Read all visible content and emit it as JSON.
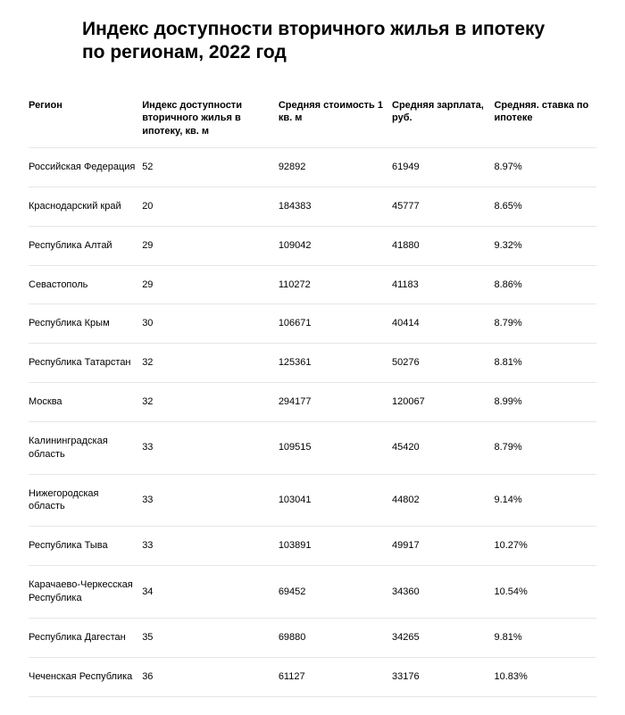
{
  "title": "Индекс доступности вторичного жилья в ипотеку по регионам, 2022 год",
  "table": {
    "type": "table",
    "background_color": "#ffffff",
    "border_color": "#e6e6e6",
    "header_fontsize": 11,
    "header_fontweight": 700,
    "cell_fontsize": 11,
    "cell_fontweight": 400,
    "text_color": "#000000",
    "column_widths_pct": [
      20,
      24,
      20,
      18,
      18
    ],
    "columns": [
      "Регион",
      "Индекс доступности вторичного жилья в ипотеку, кв. м",
      "Средняя стоимость 1 кв. м",
      "Средняя зарплата, руб.",
      "Средняя. ставка по ипотеке"
    ],
    "rows": [
      [
        "Российская Федерация",
        "52",
        "92892",
        "61949",
        "8.97%"
      ],
      [
        "Краснодарский край",
        "20",
        "184383",
        "45777",
        "8.65%"
      ],
      [
        "Республика Алтай",
        "29",
        "109042",
        "41880",
        "9.32%"
      ],
      [
        "Севастополь",
        "29",
        "110272",
        "41183",
        "8.86%"
      ],
      [
        "Республика Крым",
        "30",
        "106671",
        "40414",
        "8.79%"
      ],
      [
        "Республика Татарстан",
        "32",
        "125361",
        "50276",
        "8.81%"
      ],
      [
        "Москва",
        "32",
        "294177",
        "120067",
        "8.99%"
      ],
      [
        "Калининградская область",
        "33",
        "109515",
        "45420",
        "8.79%"
      ],
      [
        "Нижегородская область",
        "33",
        "103041",
        "44802",
        "9.14%"
      ],
      [
        "Республика Тыва",
        "33",
        "103891",
        "49917",
        "10.27%"
      ],
      [
        "Карачаево-Черкесская Республика",
        "34",
        "69452",
        "34360",
        "10.54%"
      ],
      [
        "Республика Дагестан",
        "35",
        "69880",
        "34265",
        "9.81%"
      ],
      [
        "Чеченская Республика",
        "36",
        "61127",
        "33176",
        "10.83%"
      ]
    ]
  }
}
